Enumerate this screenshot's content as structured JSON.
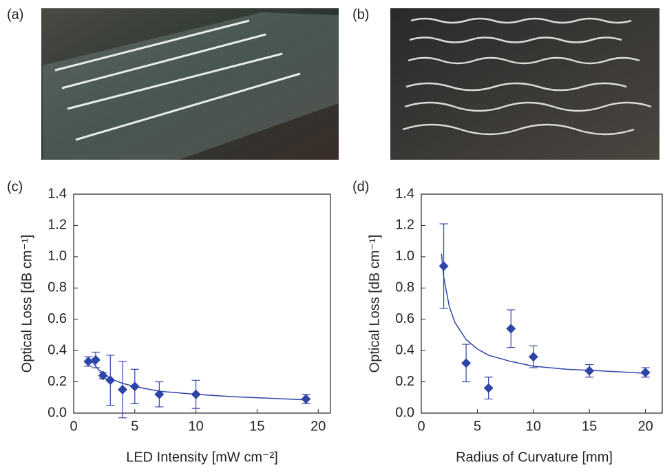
{
  "photo_labels": [
    "(a)",
    "(b)"
  ],
  "chart_data": [
    {
      "type": "scatter",
      "panel_label": "(c)",
      "x_label": "LED Intensity [mW cm⁻²]",
      "y_label": "Optical Loss [dB cm⁻¹]",
      "xlim": [
        0,
        21
      ],
      "ylim": [
        0,
        1.4
      ],
      "xticks": [
        0,
        5,
        10,
        15,
        20
      ],
      "yticks": [
        {
          "value": 0,
          "label": "0.0"
        },
        0.2,
        0.4,
        0.6,
        0.8,
        {
          "value": 1,
          "label": "1.0"
        },
        1.2,
        1.4
      ],
      "color": "#2e45a8",
      "x": [
        1.2,
        1.8,
        2.4,
        3,
        4,
        5,
        7,
        10,
        19
      ],
      "values": [
        0.33,
        0.34,
        0.24,
        0.21,
        0.15,
        0.17,
        0.12,
        0.12,
        0.09
      ],
      "errors": [
        0.03,
        0.05,
        0.02,
        0.16,
        0.18,
        0.11,
        0.08,
        0.09,
        0.03
      ],
      "fit_x": [
        1.5,
        2,
        3,
        4,
        5,
        7,
        10,
        13,
        16,
        19
      ],
      "fit_values": [
        0.33,
        0.28,
        0.22,
        0.19,
        0.17,
        0.14,
        0.12,
        0.105,
        0.095,
        0.085
      ]
    },
    {
      "type": "scatter",
      "panel_label": "(d)",
      "x_label": "Radius of Curvature [mm]",
      "y_label": "Optical Loss [dB cm⁻¹]",
      "xlim": [
        0,
        21.5
      ],
      "ylim": [
        0,
        1.4
      ],
      "xticks": [
        0,
        5,
        10,
        15,
        20
      ],
      "yticks": [
        {
          "value": 0,
          "label": "0.0"
        },
        0.2,
        0.4,
        0.6,
        0.8,
        {
          "value": 1,
          "label": "1.0"
        },
        1.2,
        1.4
      ],
      "color": "#2e45a8",
      "x": [
        2,
        4,
        6,
        8,
        10,
        15,
        20
      ],
      "values": [
        0.94,
        0.32,
        0.16,
        0.54,
        0.36,
        0.27,
        0.26
      ],
      "errors": [
        0.27,
        0.12,
        0.07,
        0.12,
        0.07,
        0.04,
        0.03
      ],
      "fit_x": [
        1.8,
        2,
        2.5,
        3,
        4,
        5,
        6,
        8,
        10,
        13,
        16,
        20
      ],
      "fit_values": [
        1.02,
        0.87,
        0.68,
        0.58,
        0.47,
        0.41,
        0.37,
        0.33,
        0.3,
        0.28,
        0.27,
        0.255
      ]
    }
  ]
}
